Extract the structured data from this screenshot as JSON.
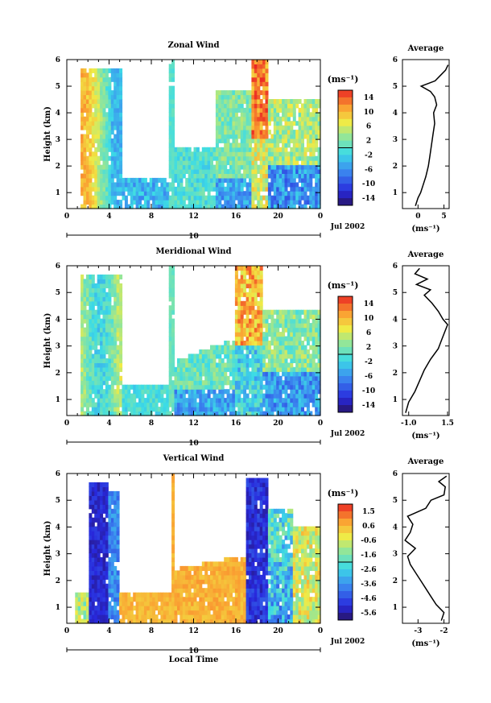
{
  "chart_data": [
    {
      "type": "heatmap",
      "title": "Zonal Wind",
      "ylabel": "Height (km)",
      "xlabel": "",
      "x_ticks": [
        "0",
        "4",
        "8",
        "12",
        "16",
        "20",
        "0"
      ],
      "y_ticks": [
        "1",
        "2",
        "3",
        "4",
        "5",
        "6"
      ],
      "xlim": [
        0,
        24
      ],
      "ylim": [
        0.4,
        6
      ],
      "date_day": "10",
      "date_label": "Jul 2002",
      "colorbar": {
        "unit": "(ms⁻¹)",
        "labels": [
          "14",
          "10",
          "6",
          "2",
          "-2",
          "-6",
          "-10",
          "-14"
        ],
        "range": [
          -16,
          16
        ]
      },
      "average": {
        "title": "Average",
        "xlabel": "(ms⁻¹)",
        "x_ticks": [
          "0",
          "5"
        ],
        "xlim": [
          -3,
          6
        ],
        "height_km": [
          0.5,
          0.8,
          1.0,
          1.3,
          1.6,
          2.0,
          2.4,
          2.8,
          3.2,
          3.6,
          4.0,
          4.3,
          4.6,
          4.8,
          5.0,
          5.2,
          5.4,
          5.6,
          5.8
        ],
        "value": [
          -0.5,
          0.0,
          0.5,
          1.0,
          1.5,
          2.0,
          2.3,
          2.6,
          2.9,
          3.2,
          3.0,
          3.6,
          3.2,
          2.4,
          0.6,
          3.3,
          4.3,
          5.3,
          5.8
        ]
      }
    },
    {
      "type": "heatmap",
      "title": "Meridional Wind",
      "ylabel": "Height (km)",
      "xlabel": "",
      "x_ticks": [
        "0",
        "4",
        "8",
        "12",
        "16",
        "20",
        "0"
      ],
      "y_ticks": [
        "1",
        "2",
        "3",
        "4",
        "5",
        "6"
      ],
      "xlim": [
        0,
        24
      ],
      "ylim": [
        0.4,
        6
      ],
      "date_day": "10",
      "date_label": "Jul 2002",
      "colorbar": {
        "unit": "(ms⁻¹)",
        "labels": [
          "14",
          "10",
          "6",
          "2",
          "-2",
          "-6",
          "-10",
          "-14"
        ],
        "range": [
          -16,
          16
        ]
      },
      "average": {
        "title": "Average",
        "xlabel": "(ms⁻¹)",
        "x_ticks": [
          "-1.0",
          "1.5"
        ],
        "xlim": [
          -1.4,
          1.6
        ],
        "height_km": [
          0.5,
          0.9,
          1.3,
          1.7,
          2.1,
          2.5,
          2.9,
          3.2,
          3.5,
          3.8,
          4.0,
          4.3,
          4.6,
          4.9,
          5.1,
          5.3,
          5.5,
          5.7,
          5.9
        ],
        "value": [
          -1.2,
          -1.0,
          -0.6,
          -0.3,
          0.0,
          0.4,
          0.9,
          1.1,
          1.3,
          1.5,
          1.2,
          0.9,
          0.5,
          0.0,
          0.4,
          -0.5,
          0.2,
          -0.6,
          -0.3
        ]
      }
    },
    {
      "type": "heatmap",
      "title": "Vertical Wind",
      "ylabel": "Height (km)",
      "xlabel": "Local Time",
      "x_ticks": [
        "0",
        "4",
        "8",
        "12",
        "16",
        "20",
        "0"
      ],
      "y_ticks": [
        "1",
        "2",
        "3",
        "4",
        "5",
        "6"
      ],
      "xlim": [
        0,
        24
      ],
      "ylim": [
        0.4,
        6
      ],
      "date_day": "10",
      "date_label": "Jul 2002",
      "colorbar": {
        "unit": "(ms⁻¹)",
        "labels": [
          "1.5",
          "0.6",
          "-0.6",
          "-1.6",
          "-2.6",
          "-3.6",
          "-4.6",
          "-5.6"
        ],
        "range": [
          -6,
          2
        ]
      },
      "average": {
        "title": "Average",
        "xlabel": "(ms⁻¹)",
        "x_ticks": [
          "-3",
          "-2"
        ],
        "xlim": [
          -3.6,
          -1.8
        ],
        "height_km": [
          0.5,
          0.8,
          1.1,
          1.4,
          1.7,
          2.0,
          2.3,
          2.6,
          2.9,
          3.2,
          3.5,
          3.8,
          4.1,
          4.4,
          4.7,
          5.0,
          5.2,
          5.5,
          5.7,
          5.9
        ],
        "value": [
          -2.1,
          -2.0,
          -2.3,
          -2.5,
          -2.7,
          -2.9,
          -3.1,
          -3.3,
          -3.4,
          -3.1,
          -3.5,
          -3.3,
          -3.2,
          -3.4,
          -2.7,
          -2.5,
          -2.0,
          -1.95,
          -2.2,
          -1.9
        ]
      }
    }
  ]
}
